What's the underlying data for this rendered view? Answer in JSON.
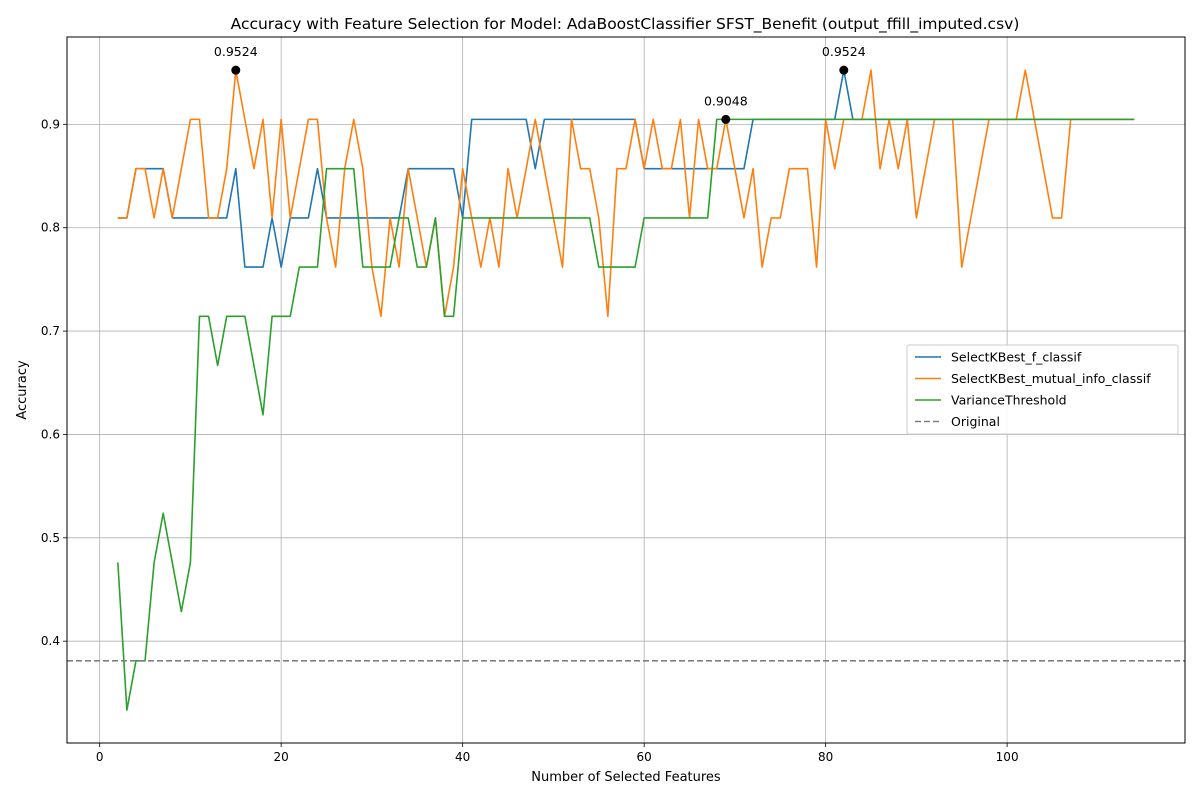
{
  "chart_data": {
    "type": "line",
    "title": "Accuracy with Feature Selection for Model: AdaBoostClassifier SFST_Benefit (output_ffill_imputed.csv)",
    "xlabel": "Number of Selected Features",
    "ylabel": "Accuracy",
    "xlim": [
      -3.6,
      119.6
    ],
    "ylim": [
      0.3015,
      0.9845
    ],
    "xticks": [
      0,
      20,
      40,
      60,
      80,
      100
    ],
    "xtick_labels": [
      "0",
      "20",
      "40",
      "60",
      "80",
      "100"
    ],
    "yticks": [
      0.4,
      0.5,
      0.6,
      0.7,
      0.8,
      0.9
    ],
    "ytick_labels": [
      "0.4",
      "0.5",
      "0.6",
      "0.7",
      "0.8",
      "0.9"
    ],
    "grid": true,
    "legend_position": "center-right",
    "series": [
      {
        "name": "SelectKBest_f_classif",
        "color": "#1f77b4",
        "x_start": 2,
        "values": [
          0.8095,
          0.8095,
          0.8571,
          0.8571,
          0.8571,
          0.8571,
          0.8095,
          0.8095,
          0.8095,
          0.8095,
          0.8095,
          0.8095,
          0.8095,
          0.8571,
          0.7619,
          0.7619,
          0.7619,
          0.8095,
          0.7619,
          0.8095,
          0.8095,
          0.8095,
          0.8571,
          0.8095,
          0.8095,
          0.8095,
          0.8095,
          0.8095,
          0.8095,
          0.8095,
          0.8095,
          0.8095,
          0.8571,
          0.8571,
          0.8571,
          0.8571,
          0.8571,
          0.8571,
          0.8095,
          0.9048,
          0.9048,
          0.9048,
          0.9048,
          0.9048,
          0.9048,
          0.9048,
          0.8571,
          0.9048,
          0.9048,
          0.9048,
          0.9048,
          0.9048,
          0.9048,
          0.9048,
          0.9048,
          0.9048,
          0.9048,
          0.9048,
          0.8571,
          0.8571,
          0.8571,
          0.8571,
          0.8571,
          0.8571,
          0.8571,
          0.8571,
          0.8571,
          0.8571,
          0.8571,
          0.8571,
          0.9048,
          0.9048,
          0.9048,
          0.9048,
          0.9048,
          0.9048,
          0.9048,
          0.9048,
          0.9048,
          0.9048,
          0.9524,
          0.9048,
          0.9048,
          0.9048,
          0.9048,
          0.9048,
          0.9048,
          0.9048,
          0.9048,
          0.9048,
          0.9048,
          0.9048,
          0.9048,
          0.9048,
          0.9048,
          0.9048,
          0.9048,
          0.9048,
          0.9048,
          0.9048,
          0.9048,
          0.9048,
          0.9048,
          0.9048,
          0.9048,
          0.9048,
          0.9048,
          0.9048,
          0.9048,
          0.9048,
          0.9048,
          0.9048,
          0.9048
        ]
      },
      {
        "name": "SelectKBest_mutual_info_classif",
        "color": "#ff7f0e",
        "x_start": 2,
        "values": [
          0.8095,
          0.8095,
          0.8571,
          0.8571,
          0.8095,
          0.8571,
          0.8095,
          0.8571,
          0.9048,
          0.9048,
          0.8095,
          0.8095,
          0.8571,
          0.9524,
          0.9048,
          0.8571,
          0.9048,
          0.8095,
          0.9048,
          0.8095,
          0.8571,
          0.9048,
          0.9048,
          0.8095,
          0.7619,
          0.8571,
          0.9048,
          0.8571,
          0.7619,
          0.7143,
          0.8095,
          0.7619,
          0.8571,
          0.8095,
          0.7619,
          0.8095,
          0.7143,
          0.7619,
          0.8571,
          0.8095,
          0.7619,
          0.8095,
          0.7619,
          0.8571,
          0.8095,
          0.8571,
          0.9048,
          0.8571,
          0.8095,
          0.7619,
          0.9048,
          0.8571,
          0.8571,
          0.8095,
          0.7143,
          0.8571,
          0.8571,
          0.9048,
          0.8571,
          0.9048,
          0.8571,
          0.8571,
          0.9048,
          0.8095,
          0.9048,
          0.8571,
          0.8571,
          0.9048,
          0.8571,
          0.8095,
          0.8571,
          0.7619,
          0.8095,
          0.8095,
          0.8571,
          0.8571,
          0.8571,
          0.7619,
          0.9048,
          0.8571,
          0.9048,
          0.9048,
          0.9048,
          0.9524,
          0.8571,
          0.9048,
          0.8571,
          0.9048,
          0.8095,
          0.8571,
          0.9048,
          0.9048,
          0.9048,
          0.7619,
          0.8095,
          0.8571,
          0.9048,
          0.9048,
          0.9048,
          0.9048,
          0.9524,
          0.9048,
          0.8571,
          0.8095,
          0.8095,
          0.9048,
          0.9048,
          0.9048,
          0.9048,
          0.9048,
          0.9048,
          0.9048,
          0.9048
        ]
      },
      {
        "name": "VarianceThreshold",
        "color": "#2ca02c",
        "x_start": 2,
        "values": [
          0.4762,
          0.3333,
          0.381,
          0.381,
          0.4762,
          0.5238,
          0.4762,
          0.4286,
          0.4762,
          0.7143,
          0.7143,
          0.6667,
          0.7143,
          0.7143,
          0.7143,
          0.6667,
          0.619,
          0.7143,
          0.7143,
          0.7143,
          0.7619,
          0.7619,
          0.7619,
          0.8571,
          0.8571,
          0.8571,
          0.8571,
          0.7619,
          0.7619,
          0.7619,
          0.7619,
          0.8095,
          0.8095,
          0.7619,
          0.7619,
          0.8095,
          0.7143,
          0.7143,
          0.8095,
          0.8095,
          0.8095,
          0.8095,
          0.8095,
          0.8095,
          0.8095,
          0.8095,
          0.8095,
          0.8095,
          0.8095,
          0.8095,
          0.8095,
          0.8095,
          0.8095,
          0.7619,
          0.7619,
          0.7619,
          0.7619,
          0.7619,
          0.8095,
          0.8095,
          0.8095,
          0.8095,
          0.8095,
          0.8095,
          0.8095,
          0.8095,
          0.9048,
          0.9048,
          0.9048,
          0.9048,
          0.9048,
          0.9048,
          0.9048,
          0.9048,
          0.9048,
          0.9048,
          0.9048,
          0.9048,
          0.9048,
          0.9048,
          0.9048,
          0.9048,
          0.9048,
          0.9048,
          0.9048,
          0.9048,
          0.9048,
          0.9048,
          0.9048,
          0.9048,
          0.9048,
          0.9048,
          0.9048,
          0.9048,
          0.9048,
          0.9048,
          0.9048,
          0.9048,
          0.9048,
          0.9048,
          0.9048,
          0.9048,
          0.9048,
          0.9048,
          0.9048,
          0.9048,
          0.9048,
          0.9048,
          0.9048,
          0.9048,
          0.9048,
          0.9048,
          0.9048
        ]
      }
    ],
    "reference_line": {
      "name": "Original",
      "y": 0.381,
      "color": "#808080",
      "style": "dashed"
    },
    "annotations": [
      {
        "x": 15,
        "y": 0.9524,
        "label": "0.9524"
      },
      {
        "x": 69,
        "y": 0.9048,
        "label": "0.9048"
      },
      {
        "x": 82,
        "y": 0.9524,
        "label": "0.9524"
      }
    ]
  }
}
